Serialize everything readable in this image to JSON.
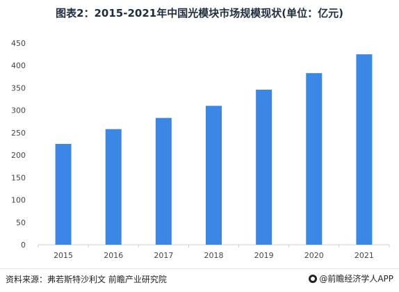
{
  "title": "图表2：2015-2021年中国光模块市场规模现状(单位：亿元)",
  "source": "资料来源：弗若斯特沙利文 前瞻产业研究院",
  "brand": "@前瞻经济学人APP",
  "colors": {
    "bar": "#3a87e6",
    "axis": "#cfcfcf",
    "tick_text": "#444444"
  },
  "chart_data": {
    "type": "bar",
    "categories": [
      "2015",
      "2016",
      "2017",
      "2018",
      "2019",
      "2020",
      "2021"
    ],
    "values": [
      225,
      258,
      283,
      310,
      346,
      383,
      425
    ],
    "title": "图表2：2015-2021年中国光模块市场规模现状(单位：亿元)",
    "xlabel": "",
    "ylabel": "",
    "ylim": [
      0,
      450
    ],
    "yticks": [
      0,
      50,
      100,
      150,
      200,
      250,
      300,
      350,
      400,
      450
    ],
    "grid": false,
    "legend": "none"
  }
}
